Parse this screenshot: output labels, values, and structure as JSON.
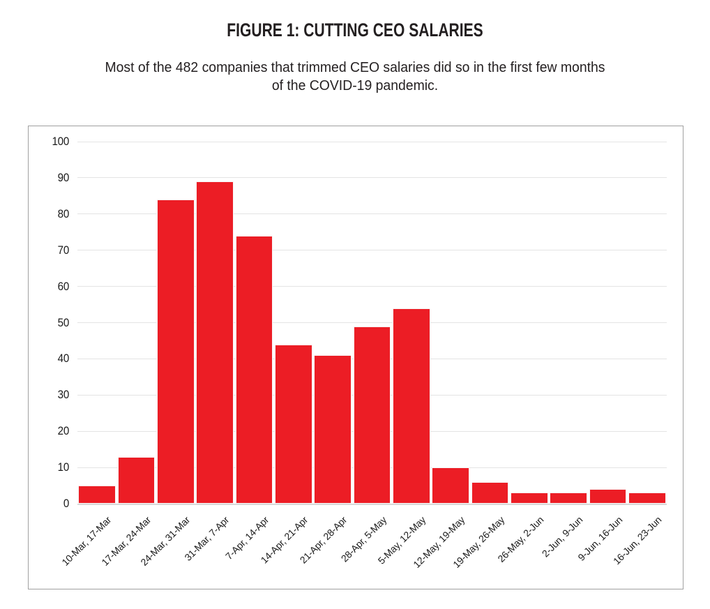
{
  "figure": {
    "title": "FIGURE 1: CUTTING CEO SALARIES",
    "subtitle_line1": "Most of the 482 companies that trimmed CEO salaries did so in the first few months",
    "subtitle_line2": "of the COVID-19 pandemic."
  },
  "colors": {
    "bar": "#ec1d25",
    "gridline": "#e4e4e4",
    "baseline": "#d8d8d8",
    "chart_border": "#a0a0a0",
    "text": "#231f20"
  },
  "chart_data": {
    "type": "bar",
    "title": "FIGURE 1: CUTTING CEO SALARIES",
    "subtitle": "Most of the 482 companies that trimmed CEO salaries did so in the first few months of the COVID-19 pandemic.",
    "categories": [
      "10-Mar, 17-Mar",
      "17-Mar, 24-Mar",
      "24-Mar, 31-Mar",
      "31-Mar, 7-Apr",
      "7-Apr, 14-Apr",
      "14-Apr, 21-Apr",
      "21-Apr, 28-Apr",
      "28-Apr, 5-May",
      "5-May, 12-May",
      "12-May, 19-May",
      "19-May, 26-May",
      "26-May, 2-Jun",
      "2-Jun, 9-Jun",
      "9-Jun, 16-Jun",
      "16-Jun, 23-Jun"
    ],
    "values": [
      5,
      13,
      84,
      89,
      74,
      44,
      41,
      49,
      54,
      10,
      6,
      3,
      3,
      4,
      3
    ],
    "xlabel": "",
    "ylabel": "",
    "ylim": [
      0,
      100
    ],
    "yticks": [
      0,
      10,
      20,
      30,
      40,
      50,
      60,
      70,
      80,
      90,
      100
    ],
    "grid": true,
    "legend": false,
    "bar_color": "#ec1d25"
  }
}
